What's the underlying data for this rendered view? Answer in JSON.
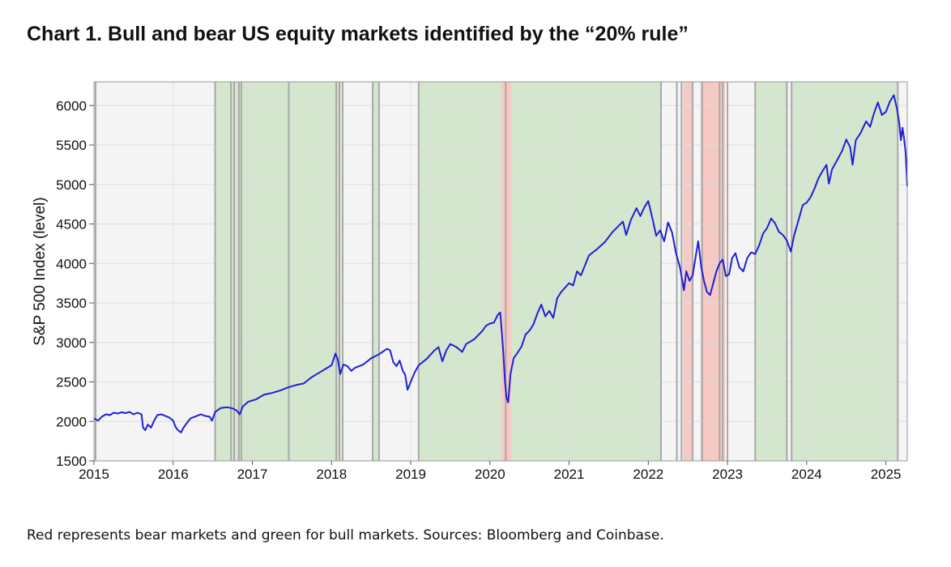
{
  "header": {
    "title": "Chart 1. Bull and bear US equity markets identified by the “20% rule”"
  },
  "caption": "Red represents bear markets and green for bull markets. Sources: Bloomberg and Coinbase.",
  "chart_data": {
    "type": "line",
    "ylabel": "S&P 500 Index (level)",
    "xlabel": "",
    "xlim": [
      2015.0,
      2025.27
    ],
    "ylim": [
      1500,
      6300
    ],
    "x_ticks": [
      "2015",
      "2016",
      "2017",
      "2018",
      "2019",
      "2020",
      "2021",
      "2022",
      "2023",
      "2024",
      "2025"
    ],
    "y_ticks": [
      1500,
      2000,
      2500,
      3000,
      3500,
      4000,
      4500,
      5000,
      5500,
      6000
    ],
    "grid": true,
    "colors": {
      "line": "#1f1fd6",
      "bull": "#d5e6cf",
      "bear": "#f5c9c4",
      "neutral": "#f4f4f4",
      "boundary": "#a8a8a8",
      "grid": "#dedede"
    },
    "regimes": [
      {
        "start": 2015.0,
        "end": 2016.53,
        "state": "neutral"
      },
      {
        "start": 2016.53,
        "end": 2022.16,
        "state": "bull"
      },
      {
        "start": 2018.12,
        "end": 2018.52,
        "state": "neutral"
      },
      {
        "start": 2018.6,
        "end": 2019.1,
        "state": "neutral"
      },
      {
        "start": 2020.14,
        "end": 2020.27,
        "state": "bear"
      },
      {
        "start": 2022.16,
        "end": 2022.44,
        "state": "neutral"
      },
      {
        "start": 2022.44,
        "end": 2022.56,
        "state": "bear"
      },
      {
        "start": 2022.56,
        "end": 2022.66,
        "state": "neutral"
      },
      {
        "start": 2022.66,
        "end": 2022.97,
        "state": "bear"
      },
      {
        "start": 2022.97,
        "end": 2023.06,
        "state": "neutral"
      },
      {
        "start": 2023.06,
        "end": 2023.35,
        "state": "neutral"
      },
      {
        "start": 2023.35,
        "end": 2025.15,
        "state": "bull"
      },
      {
        "start": 2023.75,
        "end": 2023.82,
        "state": "neutral"
      },
      {
        "start": 2025.15,
        "end": 2025.27,
        "state": "neutral"
      }
    ],
    "boundaries": [
      2015.02,
      2016.53,
      2016.73,
      2016.77,
      2016.83,
      2016.86,
      2017.46,
      2018.06,
      2018.1,
      2018.14,
      2018.52,
      2018.6,
      2019.1,
      2020.2,
      2022.16,
      2022.36,
      2022.42,
      2022.56,
      2022.68,
      2022.9,
      2022.94,
      2023.0,
      2023.35,
      2023.75,
      2023.81,
      2025.15
    ],
    "series": [
      {
        "values": [
          [
            2015.0,
            2040
          ],
          [
            2015.05,
            2010
          ],
          [
            2015.1,
            2060
          ],
          [
            2015.15,
            2090
          ],
          [
            2015.2,
            2080
          ],
          [
            2015.25,
            2110
          ],
          [
            2015.3,
            2100
          ],
          [
            2015.35,
            2115
          ],
          [
            2015.4,
            2105
          ],
          [
            2015.45,
            2120
          ],
          [
            2015.5,
            2090
          ],
          [
            2015.55,
            2110
          ],
          [
            2015.6,
            2090
          ],
          [
            2015.62,
            1920
          ],
          [
            2015.65,
            1890
          ],
          [
            2015.68,
            1960
          ],
          [
            2015.72,
            1920
          ],
          [
            2015.76,
            2010
          ],
          [
            2015.8,
            2080
          ],
          [
            2015.85,
            2090
          ],
          [
            2015.9,
            2070
          ],
          [
            2015.95,
            2050
          ],
          [
            2016.0,
            2010
          ],
          [
            2016.03,
            1930
          ],
          [
            2016.06,
            1890
          ],
          [
            2016.1,
            1860
          ],
          [
            2016.13,
            1920
          ],
          [
            2016.18,
            1990
          ],
          [
            2016.22,
            2040
          ],
          [
            2016.3,
            2070
          ],
          [
            2016.35,
            2090
          ],
          [
            2016.4,
            2070
          ],
          [
            2016.46,
            2060
          ],
          [
            2016.49,
            2010
          ],
          [
            2016.53,
            2120
          ],
          [
            2016.6,
            2170
          ],
          [
            2016.68,
            2180
          ],
          [
            2016.75,
            2165
          ],
          [
            2016.8,
            2140
          ],
          [
            2016.84,
            2090
          ],
          [
            2016.88,
            2190
          ],
          [
            2016.95,
            2250
          ],
          [
            2017.05,
            2280
          ],
          [
            2017.15,
            2340
          ],
          [
            2017.25,
            2360
          ],
          [
            2017.35,
            2390
          ],
          [
            2017.45,
            2430
          ],
          [
            2017.55,
            2460
          ],
          [
            2017.65,
            2480
          ],
          [
            2017.75,
            2560
          ],
          [
            2017.85,
            2620
          ],
          [
            2017.95,
            2680
          ],
          [
            2018.0,
            2710
          ],
          [
            2018.05,
            2860
          ],
          [
            2018.08,
            2780
          ],
          [
            2018.11,
            2600
          ],
          [
            2018.15,
            2720
          ],
          [
            2018.2,
            2700
          ],
          [
            2018.25,
            2640
          ],
          [
            2018.3,
            2680
          ],
          [
            2018.4,
            2720
          ],
          [
            2018.5,
            2800
          ],
          [
            2018.6,
            2850
          ],
          [
            2018.7,
            2920
          ],
          [
            2018.74,
            2900
          ],
          [
            2018.78,
            2750
          ],
          [
            2018.82,
            2700
          ],
          [
            2018.86,
            2770
          ],
          [
            2018.9,
            2640
          ],
          [
            2018.93,
            2590
          ],
          [
            2018.96,
            2400
          ],
          [
            2019.0,
            2500
          ],
          [
            2019.05,
            2620
          ],
          [
            2019.1,
            2710
          ],
          [
            2019.2,
            2790
          ],
          [
            2019.3,
            2900
          ],
          [
            2019.35,
            2940
          ],
          [
            2019.4,
            2760
          ],
          [
            2019.45,
            2900
          ],
          [
            2019.5,
            2980
          ],
          [
            2019.58,
            2940
          ],
          [
            2019.65,
            2880
          ],
          [
            2019.7,
            2980
          ],
          [
            2019.8,
            3040
          ],
          [
            2019.9,
            3140
          ],
          [
            2019.95,
            3210
          ],
          [
            2020.0,
            3240
          ],
          [
            2020.05,
            3250
          ],
          [
            2020.1,
            3350
          ],
          [
            2020.13,
            3380
          ],
          [
            2020.15,
            3130
          ],
          [
            2020.17,
            2860
          ],
          [
            2020.19,
            2500
          ],
          [
            2020.21,
            2300
          ],
          [
            2020.23,
            2240
          ],
          [
            2020.26,
            2600
          ],
          [
            2020.3,
            2800
          ],
          [
            2020.35,
            2870
          ],
          [
            2020.4,
            2950
          ],
          [
            2020.45,
            3100
          ],
          [
            2020.5,
            3150
          ],
          [
            2020.55,
            3230
          ],
          [
            2020.6,
            3370
          ],
          [
            2020.65,
            3480
          ],
          [
            2020.7,
            3330
          ],
          [
            2020.75,
            3400
          ],
          [
            2020.8,
            3310
          ],
          [
            2020.85,
            3560
          ],
          [
            2020.9,
            3640
          ],
          [
            2021.0,
            3750
          ],
          [
            2021.05,
            3720
          ],
          [
            2021.1,
            3900
          ],
          [
            2021.15,
            3850
          ],
          [
            2021.25,
            4100
          ],
          [
            2021.35,
            4180
          ],
          [
            2021.45,
            4270
          ],
          [
            2021.55,
            4400
          ],
          [
            2021.6,
            4450
          ],
          [
            2021.68,
            4530
          ],
          [
            2021.72,
            4360
          ],
          [
            2021.78,
            4550
          ],
          [
            2021.85,
            4700
          ],
          [
            2021.9,
            4600
          ],
          [
            2021.95,
            4710
          ],
          [
            2022.0,
            4790
          ],
          [
            2022.05,
            4580
          ],
          [
            2022.1,
            4350
          ],
          [
            2022.15,
            4420
          ],
          [
            2022.2,
            4280
          ],
          [
            2022.25,
            4520
          ],
          [
            2022.3,
            4390
          ],
          [
            2022.35,
            4130
          ],
          [
            2022.4,
            3950
          ],
          [
            2022.45,
            3660
          ],
          [
            2022.48,
            3900
          ],
          [
            2022.52,
            3780
          ],
          [
            2022.56,
            3850
          ],
          [
            2022.6,
            4100
          ],
          [
            2022.63,
            4280
          ],
          [
            2022.67,
            3950
          ],
          [
            2022.7,
            3790
          ],
          [
            2022.74,
            3640
          ],
          [
            2022.78,
            3600
          ],
          [
            2022.82,
            3750
          ],
          [
            2022.86,
            3900
          ],
          [
            2022.9,
            4000
          ],
          [
            2022.94,
            4050
          ],
          [
            2022.98,
            3840
          ],
          [
            2023.02,
            3860
          ],
          [
            2023.06,
            4070
          ],
          [
            2023.1,
            4130
          ],
          [
            2023.15,
            3950
          ],
          [
            2023.2,
            3900
          ],
          [
            2023.25,
            4070
          ],
          [
            2023.3,
            4140
          ],
          [
            2023.35,
            4120
          ],
          [
            2023.4,
            4230
          ],
          [
            2023.45,
            4380
          ],
          [
            2023.5,
            4450
          ],
          [
            2023.55,
            4570
          ],
          [
            2023.6,
            4510
          ],
          [
            2023.65,
            4400
          ],
          [
            2023.7,
            4360
          ],
          [
            2023.75,
            4290
          ],
          [
            2023.8,
            4150
          ],
          [
            2023.84,
            4350
          ],
          [
            2023.9,
            4560
          ],
          [
            2023.95,
            4740
          ],
          [
            2024.0,
            4770
          ],
          [
            2024.05,
            4840
          ],
          [
            2024.1,
            4950
          ],
          [
            2024.15,
            5080
          ],
          [
            2024.2,
            5170
          ],
          [
            2024.25,
            5250
          ],
          [
            2024.28,
            5010
          ],
          [
            2024.32,
            5190
          ],
          [
            2024.38,
            5300
          ],
          [
            2024.45,
            5430
          ],
          [
            2024.5,
            5570
          ],
          [
            2024.55,
            5470
          ],
          [
            2024.58,
            5250
          ],
          [
            2024.62,
            5560
          ],
          [
            2024.68,
            5650
          ],
          [
            2024.75,
            5800
          ],
          [
            2024.8,
            5730
          ],
          [
            2024.85,
            5900
          ],
          [
            2024.9,
            6040
          ],
          [
            2024.95,
            5880
          ],
          [
            2025.0,
            5920
          ],
          [
            2025.05,
            6050
          ],
          [
            2025.1,
            6130
          ],
          [
            2025.14,
            5960
          ],
          [
            2025.17,
            5770
          ],
          [
            2025.19,
            5560
          ],
          [
            2025.21,
            5720
          ],
          [
            2025.23,
            5580
          ],
          [
            2025.25,
            5400
          ],
          [
            2025.27,
            4980
          ]
        ]
      }
    ]
  }
}
